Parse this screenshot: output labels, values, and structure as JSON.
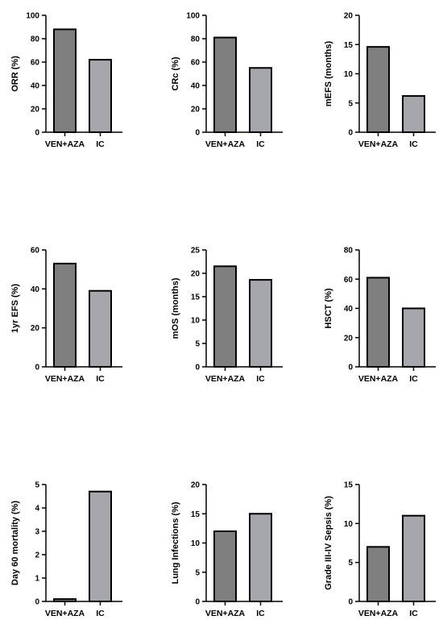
{
  "colors": {
    "bar_ven_aza": "#7f7f7f",
    "bar_ic": "#a6a6ad",
    "axis": "#000000"
  },
  "chart_data": [
    {
      "type": "bar",
      "categories": [
        "VEN+AZA",
        "IC"
      ],
      "values": [
        88,
        62
      ],
      "ylabel": "ORR (%)",
      "ylim": [
        0,
        100
      ],
      "yticks": [
        0,
        20,
        40,
        60,
        80,
        100
      ],
      "grid": false
    },
    {
      "type": "bar",
      "categories": [
        "VEN+AZA",
        "IC"
      ],
      "values": [
        81,
        55
      ],
      "ylabel": "CRc (%)",
      "ylim": [
        0,
        100
      ],
      "yticks": [
        0,
        20,
        40,
        60,
        80,
        100
      ],
      "grid": false
    },
    {
      "type": "bar",
      "categories": [
        "VEN+AZA",
        "IC"
      ],
      "values": [
        14.6,
        6.2
      ],
      "ylabel": "mEFS (months)",
      "ylim": [
        0,
        20
      ],
      "yticks": [
        0,
        5,
        10,
        15,
        20
      ],
      "grid": false
    },
    {
      "type": "bar",
      "categories": [
        "VEN+AZA",
        "IC"
      ],
      "values": [
        53,
        39
      ],
      "ylabel": "1yr EFS (%)",
      "ylim": [
        0,
        60
      ],
      "yticks": [
        0,
        20,
        40,
        60
      ],
      "grid": false
    },
    {
      "type": "bar",
      "categories": [
        "VEN+AZA",
        "IC"
      ],
      "values": [
        21.5,
        18.6
      ],
      "ylabel": "mOS (months)",
      "ylim": [
        0,
        25
      ],
      "yticks": [
        0,
        5,
        10,
        15,
        20,
        25
      ],
      "grid": false
    },
    {
      "type": "bar",
      "categories": [
        "VEN+AZA",
        "IC"
      ],
      "values": [
        61,
        40
      ],
      "ylabel": "HSCT (%)",
      "ylim": [
        0,
        80
      ],
      "yticks": [
        0,
        20,
        40,
        60,
        80
      ],
      "grid": false
    },
    {
      "type": "bar",
      "categories": [
        "VEN+AZA",
        "IC"
      ],
      "values": [
        0.1,
        4.7
      ],
      "ylabel": "Day 60 mortality (%)",
      "ylim": [
        0,
        5
      ],
      "yticks": [
        0,
        1,
        2,
        3,
        4,
        5
      ],
      "grid": false
    },
    {
      "type": "bar",
      "categories": [
        "VEN+AZA",
        "IC"
      ],
      "values": [
        12,
        15
      ],
      "ylabel": "Lung Infections (%)",
      "ylim": [
        0,
        20
      ],
      "yticks": [
        0,
        5,
        10,
        15,
        20
      ],
      "grid": false
    },
    {
      "type": "bar",
      "categories": [
        "VEN+AZA",
        "IC"
      ],
      "values": [
        7,
        11
      ],
      "ylabel": "Grade III-IV Sepsis (%)",
      "ylim": [
        0,
        15
      ],
      "yticks": [
        0,
        5,
        10,
        15
      ],
      "grid": false
    }
  ]
}
